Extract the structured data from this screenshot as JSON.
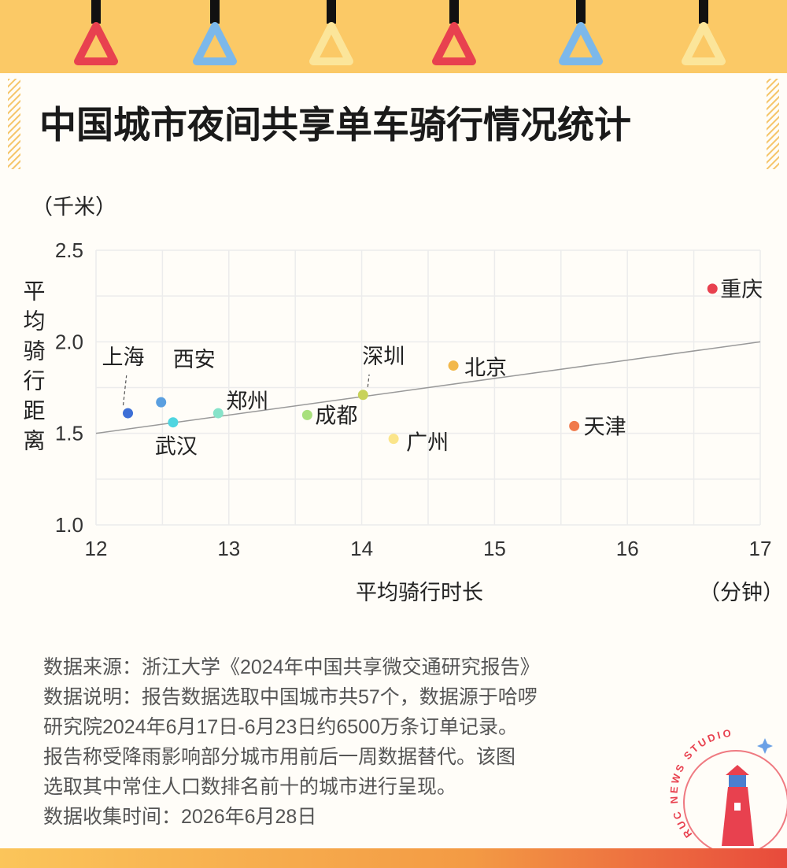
{
  "chart_data": {
    "type": "scatter",
    "title": "中国城市夜间共享单车骑行情况统计",
    "y_unit": "（千米）",
    "y_label": "平均骑行距离",
    "x_label": "平均骑行时长",
    "x_unit": "（分钟）",
    "labels": [
      "上海",
      "西安",
      "武汉",
      "郑州",
      "成都",
      "深圳",
      "广州",
      "北京",
      "天津",
      "重庆"
    ],
    "x": [
      12.24,
      12.49,
      12.58,
      12.92,
      13.59,
      14.01,
      14.24,
      14.69,
      15.6,
      16.64
    ],
    "values": [
      1.61,
      1.67,
      1.56,
      1.61,
      1.6,
      1.71,
      1.47,
      1.87,
      1.54,
      2.29
    ],
    "colors": [
      "#3d6fd6",
      "#5a9fe0",
      "#4fd5e0",
      "#86e3c9",
      "#a8e07c",
      "#c8d25a",
      "#fbe58a",
      "#f2b84b",
      "#f07a4c",
      "#e8414f"
    ],
    "trendline": {
      "x": [
        12,
        17
      ],
      "values": [
        1.5,
        2.0
      ],
      "color": "#999999"
    },
    "xlim": [
      12,
      17
    ],
    "ylim": [
      1,
      2.5
    ],
    "xticks": [
      12,
      13,
      14,
      15,
      16,
      17
    ],
    "yticks": [
      {
        "value": 1,
        "label": "1.0"
      },
      1.5,
      {
        "value": 2,
        "label": "2.0"
      },
      2.5
    ],
    "xgrid": [
      12,
      12.5,
      13,
      13.5,
      14,
      14.5,
      15,
      15.5,
      16,
      16.5,
      17
    ],
    "ygrid": [
      1,
      1.25,
      1.5,
      1.75,
      2,
      2.25,
      2.5
    ],
    "grid": true
  },
  "notes": [
    "数据来源：浙江大学《2024年中国共享微交通研究报告》",
    "数据说明：报告数据选取中国城市共57个，数据源于哈啰",
    "研究院2024年6月17日-6月23日约6500万条订单记录。",
    "报告称受降雨影响部分城市用前后一周数据替代。该图",
    "选取其中常住人口数排名前十的城市进行呈现。",
    "数据收集时间：2026年6月28日"
  ],
  "logo_text": "RUC NEWS STUDIO"
}
